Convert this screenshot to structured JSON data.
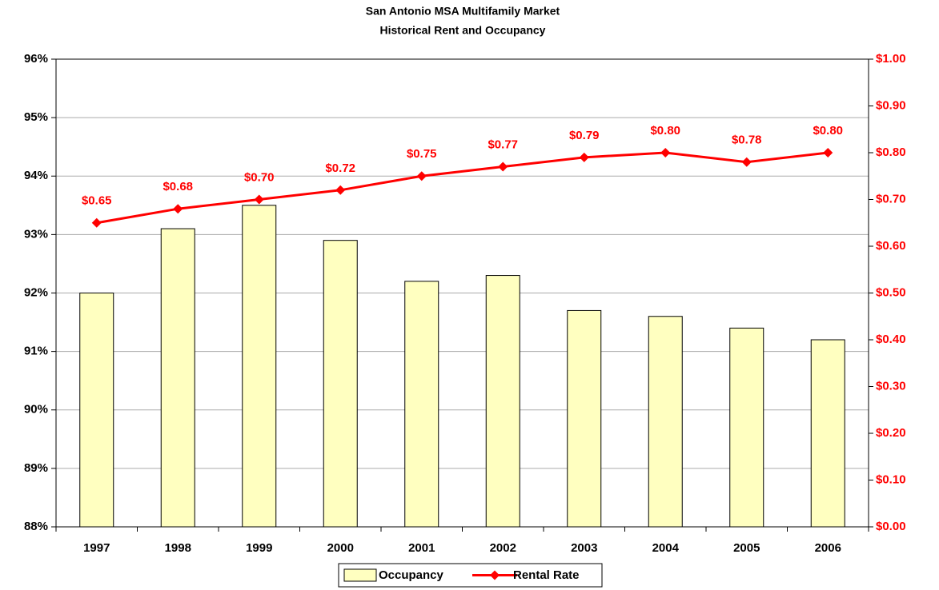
{
  "chart_data": {
    "type": "combo",
    "title": "San Antonio MSA Multifamily Market",
    "subtitle": "Historical Rent and Occupancy",
    "categories": [
      "1997",
      "1998",
      "1999",
      "2000",
      "2001",
      "2002",
      "2003",
      "2004",
      "2005",
      "2006"
    ],
    "series": [
      {
        "name": "Occupancy",
        "type": "bar",
        "color": "#ffffc0",
        "values": [
          92.0,
          93.1,
          93.5,
          92.9,
          92.2,
          92.3,
          91.7,
          91.6,
          91.4,
          91.2
        ]
      },
      {
        "name": "Rental Rate",
        "type": "line",
        "axis": "y2",
        "color": "#ff0000",
        "values": [
          0.65,
          0.68,
          0.7,
          0.72,
          0.75,
          0.77,
          0.79,
          0.8,
          0.78,
          0.8
        ],
        "value_labels": [
          "$0.65",
          "$0.68",
          "$0.70",
          "$0.72",
          "$0.75",
          "$0.77",
          "$0.79",
          "$0.80",
          "$0.78",
          "$0.80"
        ]
      }
    ],
    "ylim": [
      88,
      96
    ],
    "yticks": [
      {
        "value": 88,
        "label": "88%"
      },
      {
        "value": 89,
        "label": "89%"
      },
      {
        "value": 90,
        "label": "90%"
      },
      {
        "value": 91,
        "label": "91%"
      },
      {
        "value": 92,
        "label": "92%"
      },
      {
        "value": 93,
        "label": "93%"
      },
      {
        "value": 94,
        "label": "94%"
      },
      {
        "value": 95,
        "label": "95%"
      },
      {
        "value": 96,
        "label": "96%"
      }
    ],
    "y2lim": [
      0,
      1.0
    ],
    "y2ticks": [
      {
        "value": 0,
        "label": "$0.00"
      },
      {
        "value": 0.1,
        "label": "$0.10"
      },
      {
        "value": 0.2,
        "label": "$0.20"
      },
      {
        "value": 0.3,
        "label": "$0.30"
      },
      {
        "value": 0.4,
        "label": "$0.40"
      },
      {
        "value": 0.5,
        "label": "$0.50"
      },
      {
        "value": 0.6,
        "label": "$0.60"
      },
      {
        "value": 0.7,
        "label": "$0.70"
      },
      {
        "value": 0.8,
        "label": "$0.80"
      },
      {
        "value": 0.9,
        "label": "$0.90"
      },
      {
        "value": 1.0,
        "label": "$1.00"
      }
    ],
    "grid": true,
    "legend": "bottom"
  }
}
